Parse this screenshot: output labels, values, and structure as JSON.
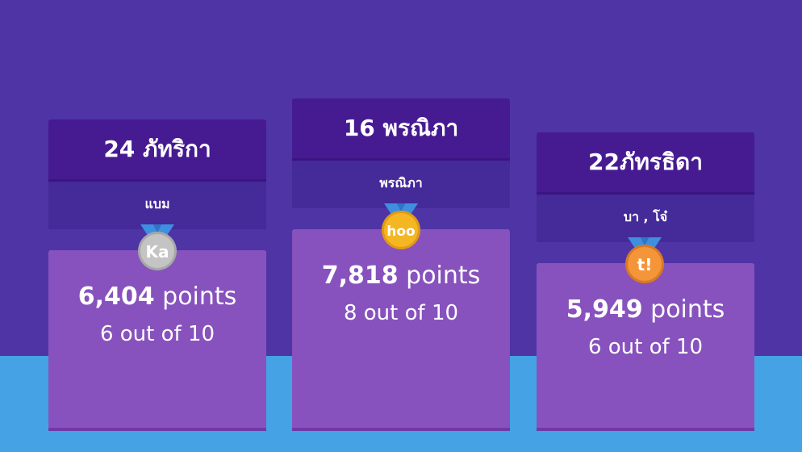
{
  "podiums": [
    {
      "name": "24 ภัทริกา",
      "members": "แบม",
      "points_value": "6,404",
      "points_unit": "points",
      "ratio": "6 out of 10",
      "medal": {
        "icon": "silver-medal-icon",
        "text": "Ka",
        "color": "#c4c4c4",
        "ring": "#a8a8a8"
      }
    },
    {
      "name": "16 พรณิภา",
      "members": "พรณิภา",
      "points_value": "7,818",
      "points_unit": "points",
      "ratio": "8 out of 10",
      "medal": {
        "icon": "gold-medal-icon",
        "text": "hoo",
        "color": "#f5b623",
        "ring": "#e09a14"
      }
    },
    {
      "name": "22ภัทรธิดา",
      "members": "บา , โจ๋",
      "points_value": "5,949",
      "points_unit": "points",
      "ratio": "6 out of 10",
      "medal": {
        "icon": "bronze-medal-icon",
        "text": "t!",
        "color": "#f4953a",
        "ring": "#d97a22"
      }
    }
  ],
  "colors": {
    "background": "#4f34a6",
    "floor": "#45a2e5",
    "name_box": "#461b91",
    "members_box": "#452a99",
    "score_box": "#8752bd",
    "ribbon": "#3e8fe0"
  }
}
